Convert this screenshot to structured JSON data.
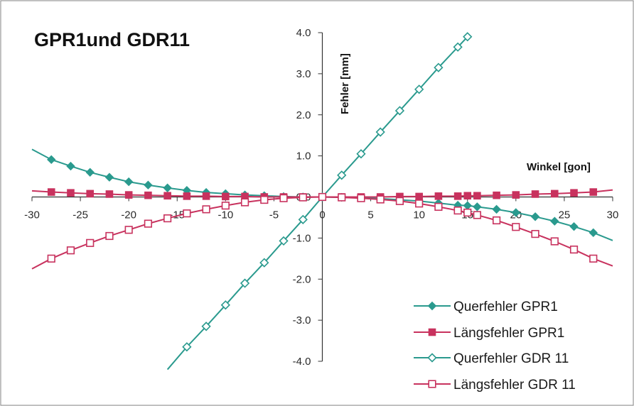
{
  "chart_data": {
    "type": "line",
    "title": "GPR1und GDR11",
    "xlabel": "Winkel [gon]",
    "ylabel": "Fehler [mm]",
    "xlim": [
      -30,
      30
    ],
    "ylim": [
      -4.0,
      4.0
    ],
    "x_ticks": [
      -30,
      -25,
      -20,
      -15,
      -10,
      -5,
      0,
      5,
      10,
      15,
      20,
      25,
      30
    ],
    "y_ticks": [
      "4.0",
      "3.0",
      "2.0",
      "1.0",
      "0.0",
      "-1.0",
      "-2.0",
      "-3.0",
      "-4.0"
    ],
    "y_tick_values": [
      4,
      3,
      2,
      1,
      0,
      -1,
      -2,
      -3,
      -4
    ],
    "grid": false,
    "legend_position": "bottom-right",
    "series": [
      {
        "name": "Querfehler GPR1",
        "color": "#2a9a8e",
        "marker": "diamond-filled",
        "x": [
          -30,
          -28,
          -26,
          -24,
          -22,
          -20,
          -18,
          -16,
          -14,
          -12,
          -10,
          -8,
          -6,
          -4,
          -2,
          0,
          2,
          4,
          6,
          8,
          10,
          12,
          14,
          15,
          16,
          18,
          20,
          22,
          24,
          26,
          28,
          30
        ],
        "y": [
          1.16,
          0.91,
          0.75,
          0.6,
          0.48,
          0.37,
          0.29,
          0.22,
          0.16,
          0.11,
          0.08,
          0.05,
          0.03,
          0.01,
          0.0,
          0.0,
          -0.01,
          -0.02,
          -0.04,
          -0.07,
          -0.1,
          -0.15,
          -0.2,
          -0.21,
          -0.24,
          -0.3,
          -0.38,
          -0.48,
          -0.59,
          -0.72,
          -0.87,
          -1.06
        ]
      },
      {
        "name": "Längsfehler GPR1",
        "color": "#c8325e",
        "marker": "square-filled",
        "x": [
          -30,
          -28,
          -26,
          -24,
          -22,
          -20,
          -18,
          -16,
          -14,
          -12,
          -10,
          -8,
          -6,
          -4,
          -2,
          0,
          2,
          4,
          6,
          8,
          10,
          12,
          14,
          15,
          16,
          18,
          20,
          22,
          24,
          26,
          28,
          30
        ],
        "y": [
          0.15,
          0.12,
          0.1,
          0.08,
          0.07,
          0.05,
          0.04,
          0.03,
          0.02,
          0.02,
          0.01,
          0.01,
          0.0,
          0.0,
          0.0,
          0.0,
          0.0,
          0.0,
          0.0,
          0.01,
          0.01,
          0.02,
          0.02,
          0.03,
          0.03,
          0.04,
          0.05,
          0.07,
          0.08,
          0.1,
          0.12,
          0.17
        ]
      },
      {
        "name": "Querfehler GDR 11",
        "color": "#2a9a8e",
        "marker": "diamond-open",
        "x": [
          -16,
          -14,
          -12,
          -10,
          -8,
          -6,
          -4,
          -2,
          0,
          2,
          4,
          6,
          8,
          10,
          12,
          14,
          15
        ],
        "y": [
          -4.2,
          -3.65,
          -3.15,
          -2.63,
          -2.1,
          -1.6,
          -1.07,
          -0.55,
          0.0,
          0.53,
          1.05,
          1.58,
          2.1,
          2.62,
          3.15,
          3.65,
          3.9
        ]
      },
      {
        "name": "Längsfehler GDR 11",
        "color": "#c8325e",
        "marker": "square-open",
        "x": [
          -30,
          -28,
          -26,
          -24,
          -22,
          -20,
          -18,
          -16,
          -14,
          -12,
          -10,
          -8,
          -6,
          -4,
          -2,
          0,
          2,
          4,
          6,
          8,
          10,
          12,
          14,
          15,
          16,
          18,
          20,
          22,
          24,
          26,
          28,
          30
        ],
        "y": [
          -1.75,
          -1.5,
          -1.3,
          -1.12,
          -0.95,
          -0.8,
          -0.65,
          -0.52,
          -0.4,
          -0.3,
          -0.21,
          -0.13,
          -0.07,
          -0.03,
          -0.01,
          0.0,
          -0.01,
          -0.03,
          -0.06,
          -0.1,
          -0.16,
          -0.24,
          -0.33,
          -0.38,
          -0.44,
          -0.57,
          -0.73,
          -0.9,
          -1.08,
          -1.28,
          -1.5,
          -1.68
        ]
      }
    ]
  }
}
